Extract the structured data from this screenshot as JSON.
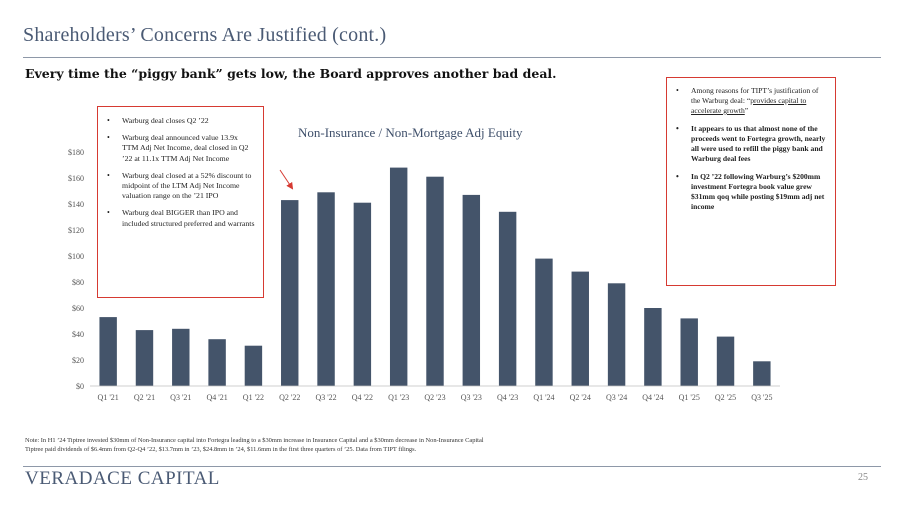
{
  "header": {
    "title": "Shareholders’ Concerns Are Justified (cont.)",
    "subtitle": "Every time the “piggy bank” gets low, the Board approves another bad deal."
  },
  "chart_data": {
    "type": "bar",
    "title": "Non-Insurance / Non-Mortgage Adj Equity",
    "categories": [
      "Q1 '21",
      "Q2 '21",
      "Q3 '21",
      "Q4 '21",
      "Q1 '22",
      "Q2 '22",
      "Q3 '22",
      "Q4 '22",
      "Q1 '23",
      "Q2 '23",
      "Q3 '23",
      "Q4 '23",
      "Q1 '24",
      "Q2 '24",
      "Q3 '24",
      "Q4 '24",
      "Q1 '25",
      "Q2 '25",
      "Q3 '25"
    ],
    "values": [
      53,
      43,
      44,
      36,
      31,
      143,
      149,
      141,
      168,
      161,
      147,
      134,
      98,
      88,
      79,
      60,
      52,
      38,
      19
    ],
    "ylim": [
      0,
      180
    ],
    "yticks": [
      "$0",
      "$20",
      "$40",
      "$60",
      "$80",
      "$100",
      "$120",
      "$140",
      "$160",
      "$180"
    ],
    "ytick_values": [
      0,
      20,
      40,
      60,
      80,
      100,
      120,
      140,
      160,
      180
    ],
    "xlabel": "",
    "ylabel": "",
    "bar_color": "#44546a",
    "arrow_color": "#d63a32"
  },
  "callouts": {
    "left": [
      "Warburg deal closes Q2 ’22",
      "Warburg deal announced value 13.9x TTM Adj Net Income, deal closed in Q2 ’22 at 11.1x TTM Adj Net Income",
      "Warburg deal closed at a 52% discount to midpoint of the LTM Adj Net Income valuation range on the ’21 IPO",
      "Warburg deal BIGGER than IPO and included structured preferred and warrants"
    ],
    "right": {
      "item1_prefix": "Among reasons for TIPT’s justification of the Warburg deal: “",
      "item1_link": "provides capital to accelerate growth",
      "item1_suffix": "”",
      "item2": "It appears to us that almost none of the proceeds went to Fortegra growth, nearly all were used to refill the piggy bank and Warburg deal fees",
      "item3": "In Q2 ’22 following Warburg’s $200mm investment Fortegra book value grew $31mm qoq while posting $19mm adj net income"
    }
  },
  "note": {
    "line1": "Note: In H1 ’24 Tiptree invested $30mm of Non-Insurance capital into Fortegra leading to a $30mm increase in Insurance Capital and a $30mm decrease in Non-Insurance Capital",
    "line2": "Tiptree paid dividends of $6.4mm from Q2-Q4 ’22, $13.7mm in ’23, $24.8mm in ’24, $11.6mm in the first three quarters of ’25.  Data from TIPT filings."
  },
  "footer": {
    "brand": "VERADACE CAPITAL",
    "page_number": "25"
  }
}
